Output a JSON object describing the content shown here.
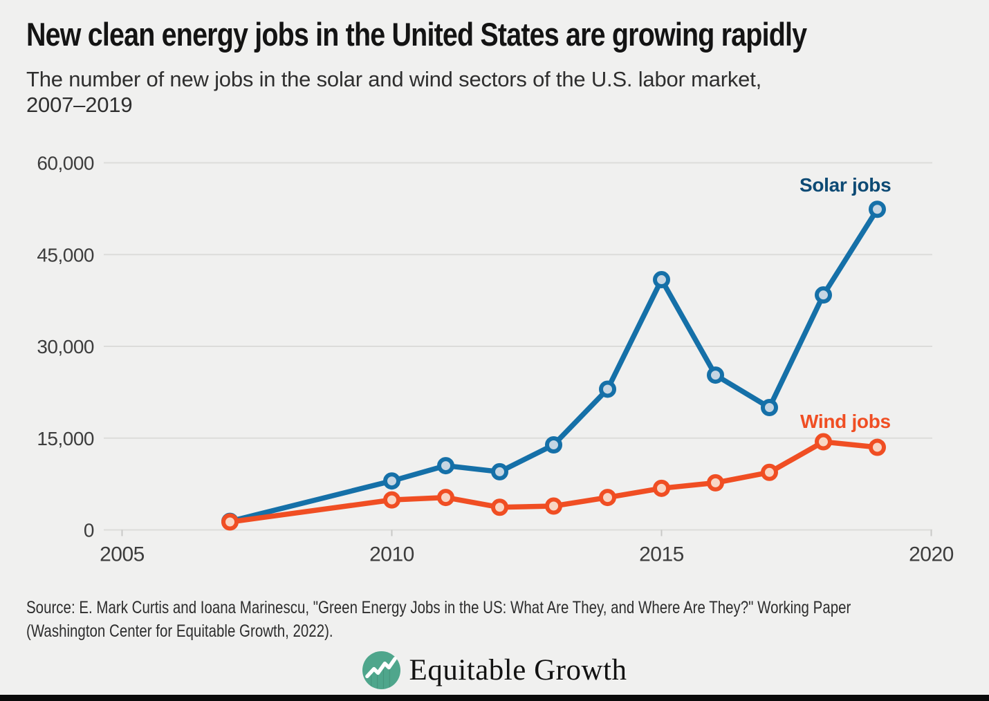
{
  "title": "New clean energy jobs in the United States are growing rapidly",
  "subtitle_lines": [
    "The number of new jobs in the solar and wind sectors of the U.S. labor market,",
    "2007–2019"
  ],
  "source_lines": [
    "Source: E. Mark Curtis and Ioana Marinescu, \"Green Energy Jobs in the US: What Are They, and Where Are They?\" Working Paper",
    "(Washington Center for Equitable Growth, 2022)."
  ],
  "logo": {
    "text": "Equitable Growth",
    "icon": "line-chart-circle-icon",
    "icon_color": "#4fa68c"
  },
  "colors": {
    "background": "#f0f0ef",
    "grid": "#dcdcda",
    "axis_text": "#3d3d3d",
    "title_text": "#141414",
    "bottom_bar": "#0a0a0a"
  },
  "chart_data": {
    "type": "line",
    "title": "New clean energy jobs in the United States are growing rapidly",
    "xlabel": "",
    "ylabel": "",
    "x": [
      2007,
      2010,
      2011,
      2012,
      2013,
      2014,
      2015,
      2016,
      2017,
      2018,
      2019
    ],
    "series": [
      {
        "name": "Solar jobs",
        "label_color": "#0d4a74",
        "line_color": "#1570a8",
        "marker_fill": "#c6d6e3",
        "values": [
          1400,
          8000,
          10500,
          9500,
          13900,
          23000,
          40900,
          25300,
          20000,
          38400,
          52400
        ]
      },
      {
        "name": "Wind jobs",
        "label_color": "#f04e23",
        "line_color": "#f04e23",
        "marker_fill": "#f8d6c5",
        "values": [
          1300,
          4900,
          5300,
          3700,
          3900,
          5300,
          6800,
          7700,
          9400,
          14400,
          13500
        ]
      }
    ],
    "xticks": [
      2005,
      2010,
      2015,
      2020
    ],
    "yticks": [
      0,
      15000,
      30000,
      45000,
      60000
    ],
    "ytick_labels": [
      "0",
      "15,000",
      "30,000",
      "45,000",
      "60,000"
    ],
    "xlim": [
      2004.7,
      2020.1
    ],
    "ylim": [
      0,
      60000
    ],
    "grid": "horizontal",
    "legend": "inline-labels"
  }
}
